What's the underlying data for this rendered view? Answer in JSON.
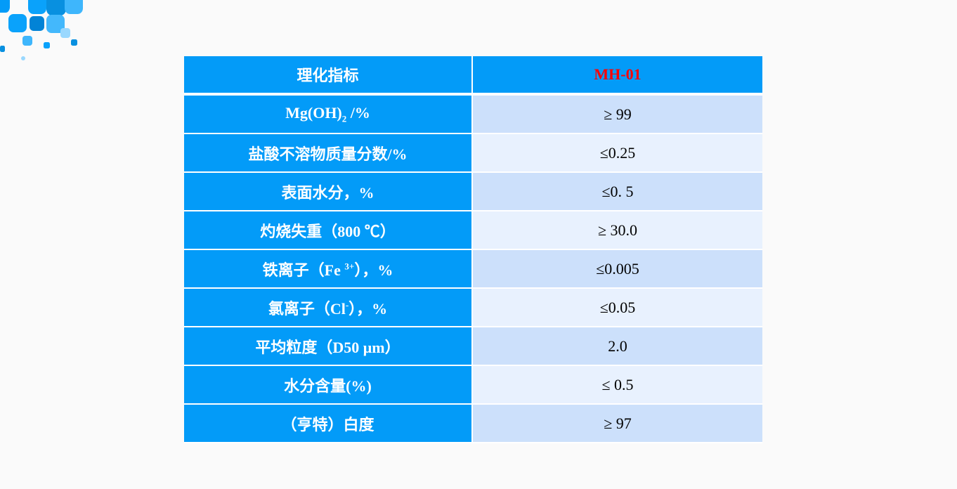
{
  "header": {
    "param": "理化指标",
    "product": "MH-01"
  },
  "rows": [
    {
      "pre": "Mg(OH)",
      "sub": "2",
      "post": " /%",
      "value": "≥ 99"
    },
    {
      "pre": "盐酸不溶物质量分数/%",
      "value": "≤0.25"
    },
    {
      "pre": "表面水分，%",
      "value": "≤0. 5"
    },
    {
      "pre": "灼烧失重（800 ℃）",
      "value": "≥ 30.0"
    },
    {
      "pre": "铁离子（Fe ",
      "sup": "3+",
      "post": "），%",
      "value": "≤0.005"
    },
    {
      "pre": "氯离子（Cl",
      "sup": "-",
      "post": "），%",
      "value": "≤0.05"
    },
    {
      "pre": "平均粒度（D50 μm）",
      "value": "2.0"
    },
    {
      "pre": "水分含量(%)",
      "value": "≤ 0.5"
    },
    {
      "pre": "（亨特）白度",
      "value": "≥ 97"
    }
  ],
  "colors": {
    "header_bg": "#039bf8",
    "product_text": "#ff0000",
    "row_odd": "#cce0fb",
    "row_even": "#e8f1fe"
  }
}
